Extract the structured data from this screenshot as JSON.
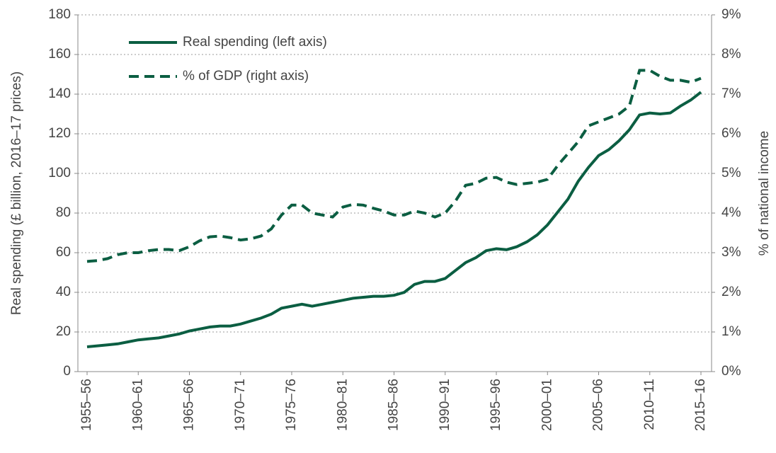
{
  "chart_data": {
    "type": "line",
    "y_label": "Real spending (£ billion, 2016–17 prices)",
    "y2_label": "% of national income",
    "categories": [
      "1955–56",
      null,
      null,
      null,
      null,
      "1960–61",
      null,
      null,
      null,
      null,
      "1965–66",
      null,
      null,
      null,
      null,
      "1970–71",
      null,
      null,
      null,
      null,
      "1975–76",
      null,
      null,
      null,
      null,
      "1980–81",
      null,
      null,
      null,
      null,
      "1985–86",
      null,
      null,
      null,
      null,
      "1990–91",
      null,
      null,
      null,
      null,
      "1995–96",
      null,
      null,
      null,
      null,
      "2000–01",
      null,
      null,
      null,
      null,
      "2005–06",
      null,
      null,
      null,
      null,
      "2010–11",
      null,
      null,
      null,
      null,
      "2015–16"
    ],
    "series": [
      {
        "name": "Real spending (left axis)",
        "color": "#0b5e42",
        "dash": "solid",
        "axis": "y",
        "values": [
          12.5,
          13,
          13.5,
          14,
          15,
          16,
          16.5,
          17,
          18,
          19,
          20.5,
          21.5,
          22.5,
          23,
          23,
          24,
          25.5,
          27,
          29,
          32,
          33,
          34,
          33,
          34,
          35,
          36,
          37,
          37.5,
          38,
          38,
          38.5,
          40,
          44,
          45.5,
          45.5,
          47,
          51,
          55,
          57.5,
          61,
          62,
          61.5,
          63,
          65.5,
          69,
          74,
          80.5,
          87,
          96,
          103,
          109,
          112,
          116.5,
          122,
          129.5,
          130.5,
          130,
          130.5,
          134,
          137,
          141
        ]
      },
      {
        "name": "% of GDP (right axis)",
        "color": "#0b5e42",
        "dash": "dashed",
        "axis": "y2",
        "values": [
          2.78,
          2.8,
          2.85,
          2.95,
          3.0,
          3.0,
          3.05,
          3.08,
          3.08,
          3.05,
          3.15,
          3.3,
          3.4,
          3.42,
          3.38,
          3.32,
          3.35,
          3.42,
          3.6,
          3.95,
          4.2,
          4.2,
          4.0,
          3.95,
          3.9,
          4.15,
          4.22,
          4.2,
          4.12,
          4.05,
          3.95,
          3.95,
          4.05,
          4.0,
          3.9,
          4.0,
          4.3,
          4.7,
          4.75,
          4.88,
          4.9,
          4.78,
          4.72,
          4.75,
          4.78,
          4.85,
          5.2,
          5.5,
          5.8,
          6.2,
          6.3,
          6.4,
          6.5,
          6.7,
          7.6,
          7.6,
          7.45,
          7.35,
          7.35,
          7.3,
          7.4
        ]
      }
    ],
    "ylim": [
      0,
      180
    ],
    "yticks": [
      0,
      20,
      40,
      60,
      80,
      100,
      120,
      140,
      160,
      180
    ],
    "y2lim": [
      0,
      9
    ],
    "y2ticks": [
      {
        "value": 0,
        "label": "0%"
      },
      {
        "value": 1,
        "label": "1%"
      },
      {
        "value": 2,
        "label": "2%"
      },
      {
        "value": 3,
        "label": "3%"
      },
      {
        "value": 4,
        "label": "4%"
      },
      {
        "value": 5,
        "label": "5%"
      },
      {
        "value": 6,
        "label": "6%"
      },
      {
        "value": 7,
        "label": "7%"
      },
      {
        "value": 8,
        "label": "8%"
      },
      {
        "value": 9,
        "label": "9%"
      }
    ],
    "grid": true,
    "legend": "upper left"
  }
}
